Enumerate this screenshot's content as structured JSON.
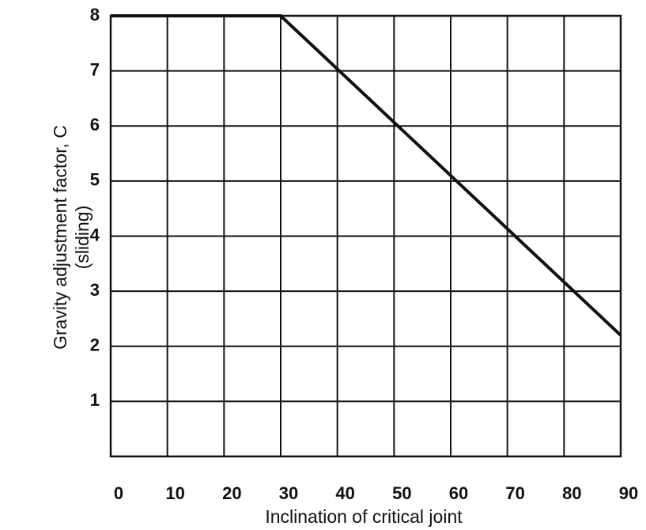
{
  "chart_data": {
    "type": "line",
    "y_label": "Gravity adjustment factor, C",
    "y_label_2": "(sliding)",
    "x_label": "Inclination of critical joint",
    "x": [
      0,
      30,
      90
    ],
    "series": [
      {
        "name": "C",
        "color": "#111111",
        "values": [
          8,
          8,
          2.2
        ]
      }
    ],
    "xlim": [
      0,
      90
    ],
    "xticks": [
      0,
      10,
      20,
      30,
      40,
      50,
      60,
      70,
      80,
      90
    ],
    "ylim": [
      0,
      8
    ],
    "yticks": [
      1,
      2,
      3,
      4,
      5,
      6,
      7,
      8
    ],
    "grid": true
  }
}
